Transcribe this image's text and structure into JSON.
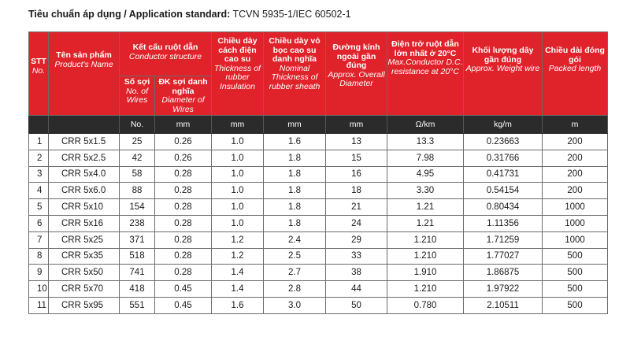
{
  "heading": {
    "vi": "Tiêu chuẩn áp dụng / Application standard:",
    "standard": "TCVN 5935-1/IEC 60502-1"
  },
  "header": {
    "stt": {
      "vi": "STT",
      "en": "No."
    },
    "product": {
      "vi": "Tên sản phẩm",
      "en": "Product's Name"
    },
    "conductor": {
      "vi": "Kết cấu ruột dẫn",
      "en": "Conductor structure"
    },
    "wires": {
      "vi": "Số sợi",
      "en": "No. of Wires"
    },
    "diameter": {
      "vi": "ĐK sợi danh nghĩa",
      "en": "Diameter of Wires"
    },
    "insulation": {
      "vi": "Chiều dày cách điện cao su",
      "en": "Thickness of rubber Insulation"
    },
    "sheath": {
      "vi": "Chiều dày vỏ bọc cao su danh nghĩa",
      "en": "Nominal Thickness of rubber sheath"
    },
    "overall": {
      "vi": "Đường kính ngoài gần đúng",
      "en": "Approx. Overall Diameter"
    },
    "resistance": {
      "vi": "Điện trở ruột dẫn lớn nhất ở 20°C",
      "en": "Max.Conductor D.C. resistance at 20°C"
    },
    "weight": {
      "vi": "Khối lượng dây gần đúng",
      "en": "Approx. Weight wire"
    },
    "length": {
      "vi": "Chiều dài đóng gói",
      "en": "Packed length"
    }
  },
  "units": [
    "",
    "",
    "No.",
    "mm",
    "mm",
    "mm",
    "mm",
    "Ω/km",
    "kg/m",
    "m"
  ],
  "rows": [
    [
      "1",
      "CRR 5x1.5",
      "25",
      "0.26",
      "1.0",
      "1.6",
      "13",
      "13.3",
      "0.23663",
      "200"
    ],
    [
      "2",
      "CRR 5x2.5",
      "42",
      "0.26",
      "1.0",
      "1.8",
      "15",
      "7.98",
      "0.31766",
      "200"
    ],
    [
      "3",
      "CRR 5x4.0",
      "58",
      "0.28",
      "1.0",
      "1.8",
      "16",
      "4.95",
      "0.41731",
      "200"
    ],
    [
      "4",
      "CRR 5x6.0",
      "88",
      "0.28",
      "1.0",
      "1.8",
      "18",
      "3.30",
      "0.54154",
      "200"
    ],
    [
      "5",
      "CRR 5x10",
      "154",
      "0.28",
      "1.0",
      "1.8",
      "21",
      "1.21",
      "0.80434",
      "1000"
    ],
    [
      "6",
      "CRR 5x16",
      "238",
      "0.28",
      "1.0",
      "1.8",
      "24",
      "1.21",
      "1.11356",
      "1000"
    ],
    [
      "7",
      "CRR 5x25",
      "371",
      "0.28",
      "1.2",
      "2.4",
      "29",
      "1.210",
      "1.71259",
      "1000"
    ],
    [
      "8",
      "CRR 5x35",
      "518",
      "0.28",
      "1.2",
      "2.5",
      "33",
      "1.210",
      "1.77027",
      "500"
    ],
    [
      "9",
      "CRR 5x50",
      "741",
      "0.28",
      "1.4",
      "2.7",
      "38",
      "1.910",
      "1.86875",
      "500"
    ],
    [
      "10",
      "CRR 5x70",
      "418",
      "0.45",
      "1.4",
      "2.8",
      "44",
      "1.210",
      "1.97922",
      "500"
    ],
    [
      "11",
      "CRR 5x95",
      "551",
      "0.45",
      "1.6",
      "3.0",
      "50",
      "0.780",
      "2.10511",
      "500"
    ]
  ]
}
